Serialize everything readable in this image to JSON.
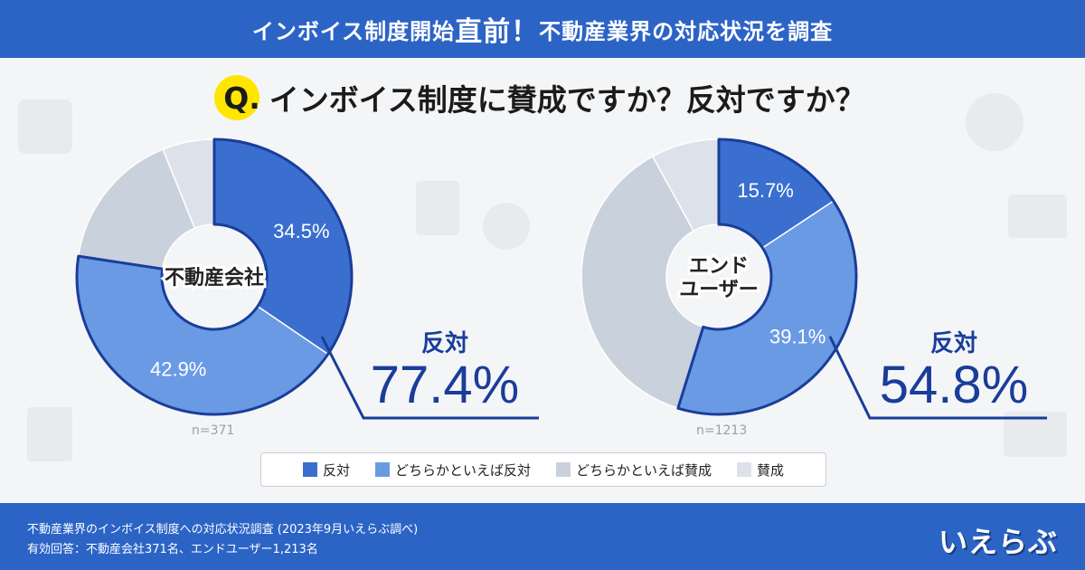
{
  "header": {
    "title_pre": "インボイス制度開始",
    "title_big": "直前！",
    "title_post": "不動産業界の対応状況を調査"
  },
  "question": {
    "q_mark": "Q.",
    "text": "インボイス制度に賛成ですか？反対ですか？"
  },
  "colors": {
    "oppose": "#3a6fcf",
    "lean_oppose": "#6a9ae4",
    "lean_support": "#c9d1dd",
    "support": "#dde2ea",
    "outline": "#1a3d9a",
    "header_bg": "#2c64c6"
  },
  "legend": [
    {
      "label": "反対",
      "color": "#3a6fcf"
    },
    {
      "label": "どちらかといえば反対",
      "color": "#6a9ae4"
    },
    {
      "label": "どちらかといえば賛成",
      "color": "#c9d1dd"
    },
    {
      "label": "賛成",
      "color": "#dde2ea"
    }
  ],
  "chart_data": [
    {
      "type": "pie",
      "center_label": [
        "不動産会社"
      ],
      "n_label": "n=371",
      "categories": [
        "反対",
        "どちらかといえば反対",
        "どちらかといえば賛成",
        "賛成"
      ],
      "values": [
        34.5,
        42.9,
        16.5,
        6.1
      ],
      "value_labels": [
        "34.5%",
        "42.9%",
        "",
        ""
      ],
      "total_label": "反対",
      "total_value": "77.4%"
    },
    {
      "type": "pie",
      "center_label": [
        "エンド",
        "ユーザー"
      ],
      "n_label": "n=1213",
      "categories": [
        "反対",
        "どちらかといえば反対",
        "どちらかといえば賛成",
        "賛成"
      ],
      "values": [
        15.7,
        39.1,
        37.2,
        8.0
      ],
      "value_labels": [
        "15.7%",
        "39.1%",
        "",
        ""
      ],
      "total_label": "反対",
      "total_value": "54.8%"
    }
  ],
  "footer": {
    "line1": "不動産業界のインボイス制度への対応状況調査 (2023年9月いえらぶ調べ)",
    "line2": "有効回答：不動産会社371名、エンドユーザー1,213名",
    "logo": "いえらぶ"
  }
}
